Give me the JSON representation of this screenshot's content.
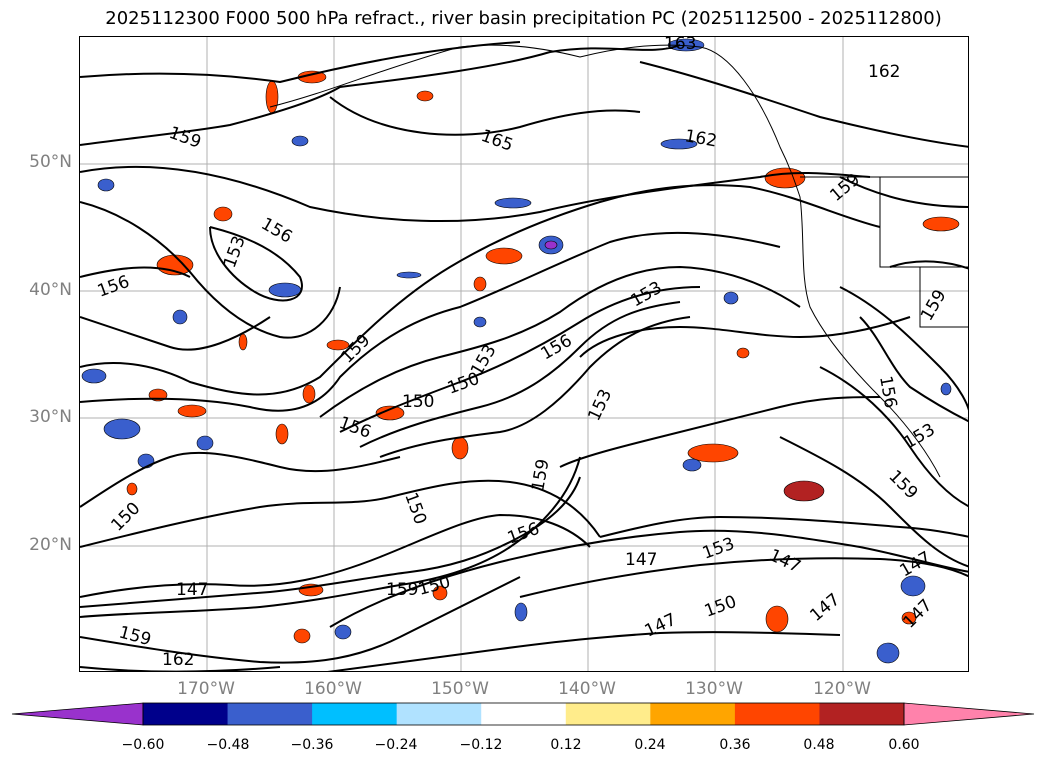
{
  "title": "2025112300 F000 500 hPa refract., river basin precipitation PC (2025112500 - 2025112800)",
  "axes": {
    "lat_labels": [
      "50°N",
      "40°N",
      "30°N",
      "20°N"
    ],
    "lon_labels": [
      "170°W",
      "160°W",
      "150°W",
      "140°W",
      "130°W",
      "120°W"
    ]
  },
  "contour_labels": [
    "163",
    "162",
    "159",
    "165",
    "162",
    "156",
    "153",
    "156",
    "159",
    "153",
    "156",
    "159",
    "150",
    "150",
    "153",
    "156",
    "159",
    "153",
    "150",
    "150",
    "159",
    "156",
    "147",
    "153",
    "147",
    "150",
    "147",
    "147",
    "147",
    "147",
    "147",
    "150",
    "159",
    "162",
    "159",
    "156",
    "153",
    "159"
  ],
  "colorbar": {
    "ticks": [
      "−0.60",
      "−0.48",
      "−0.36",
      "−0.24",
      "−0.12",
      "0.12",
      "0.24",
      "0.36",
      "0.48",
      "0.60"
    ],
    "colors": [
      "#9932CC",
      "#00008B",
      "#3A5FCD",
      "#00BFFF",
      "#B0E2FF",
      "#FFFFFF",
      "#FFEC8B",
      "#FFA500",
      "#FF4500",
      "#B22222",
      "#FF82AB"
    ]
  }
}
